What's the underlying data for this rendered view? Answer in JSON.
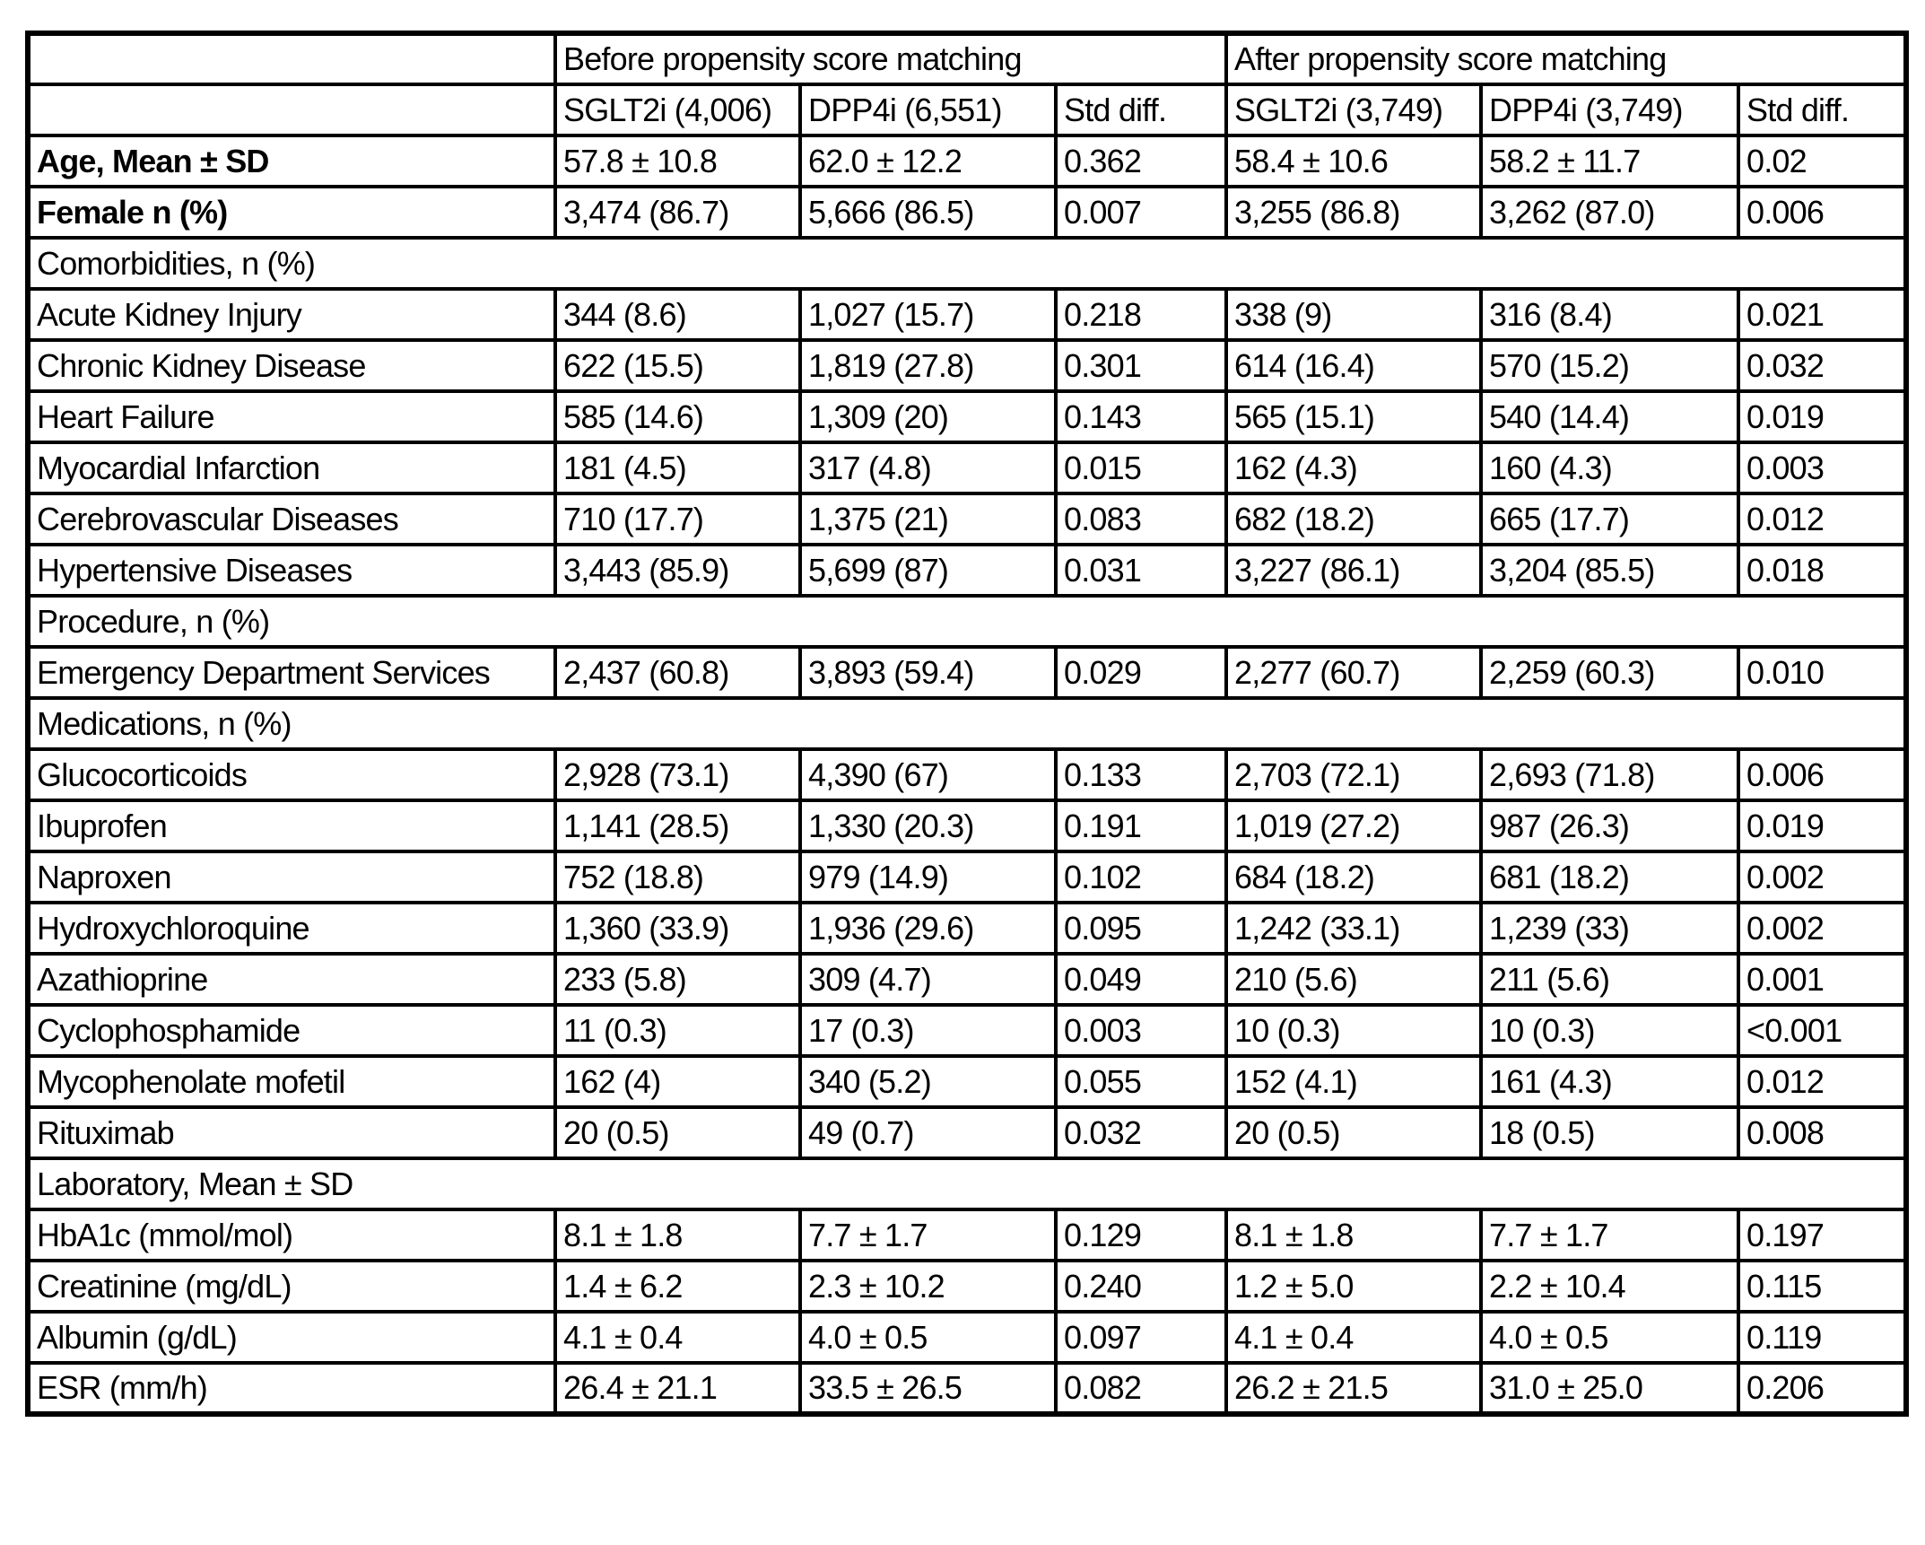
{
  "colors": {
    "border": "#000000",
    "background": "#ffffff",
    "text": "#000000"
  },
  "table": {
    "group_headers": {
      "before": "Before propensity score matching",
      "after": "After propensity score matching"
    },
    "column_headers": [
      "SGLT2i (4,006)",
      "DPP4i (6,551)",
      "Std diff.",
      "SGLT2i (3,749)",
      "DPP4i (3,749)",
      "Std diff."
    ],
    "rows": [
      {
        "type": "data",
        "bold": true,
        "label": "Age, Mean ± SD",
        "values": [
          "57.8 ± 10.8",
          "62.0 ± 12.2",
          "0.362",
          "58.4 ± 10.6",
          "58.2 ± 11.7",
          "0.02"
        ]
      },
      {
        "type": "data",
        "bold": true,
        "label": "Female n (%)",
        "values": [
          "3,474 (86.7)",
          "5,666 (86.5)",
          "0.007",
          "3,255 (86.8)",
          "3,262 (87.0)",
          "0.006"
        ]
      },
      {
        "type": "section",
        "label": "Comorbidities, n (%)"
      },
      {
        "type": "data",
        "bold": false,
        "label": "Acute Kidney Injury",
        "values": [
          "344 (8.6)",
          "1,027 (15.7)",
          "0.218",
          "338 (9)",
          "316 (8.4)",
          "0.021"
        ]
      },
      {
        "type": "data",
        "bold": false,
        "label": "Chronic Kidney Disease",
        "values": [
          "622 (15.5)",
          "1,819 (27.8)",
          "0.301",
          "614 (16.4)",
          "570 (15.2)",
          "0.032"
        ]
      },
      {
        "type": "data",
        "bold": false,
        "label": "Heart Failure",
        "values": [
          "585 (14.6)",
          "1,309 (20)",
          "0.143",
          "565 (15.1)",
          "540 (14.4)",
          "0.019"
        ]
      },
      {
        "type": "data",
        "bold": false,
        "label": "Myocardial Infarction",
        "values": [
          "181 (4.5)",
          "317 (4.8)",
          "0.015",
          "162 (4.3)",
          "160 (4.3)",
          "0.003"
        ]
      },
      {
        "type": "data",
        "bold": false,
        "label": "Cerebrovascular Diseases",
        "values": [
          "710 (17.7)",
          "1,375 (21)",
          "0.083",
          "682 (18.2)",
          "665 (17.7)",
          "0.012"
        ]
      },
      {
        "type": "data",
        "bold": false,
        "label": "Hypertensive Diseases",
        "values": [
          "3,443 (85.9)",
          "5,699 (87)",
          "0.031",
          "3,227 (86.1)",
          "3,204 (85.5)",
          "0.018"
        ]
      },
      {
        "type": "section",
        "label": "Procedure, n (%)"
      },
      {
        "type": "data",
        "bold": false,
        "label": "Emergency Department Services",
        "values": [
          "2,437 (60.8)",
          "3,893 (59.4)",
          "0.029",
          "2,277 (60.7)",
          "2,259 (60.3)",
          "0.010"
        ]
      },
      {
        "type": "section",
        "label": "Medications, n (%)"
      },
      {
        "type": "data",
        "bold": false,
        "label": "Glucocorticoids",
        "values": [
          "2,928 (73.1)",
          "4,390 (67)",
          "0.133",
          "2,703 (72.1)",
          "2,693 (71.8)",
          "0.006"
        ]
      },
      {
        "type": "data",
        "bold": false,
        "label": "Ibuprofen",
        "values": [
          "1,141 (28.5)",
          "1,330 (20.3)",
          "0.191",
          "1,019 (27.2)",
          "987 (26.3)",
          "0.019"
        ]
      },
      {
        "type": "data",
        "bold": false,
        "label": "Naproxen",
        "values": [
          "752 (18.8)",
          "979 (14.9)",
          "0.102",
          "684 (18.2)",
          "681 (18.2)",
          "0.002"
        ]
      },
      {
        "type": "data",
        "bold": false,
        "label": "Hydroxychloroquine",
        "values": [
          "1,360 (33.9)",
          "1,936 (29.6)",
          "0.095",
          "1,242 (33.1)",
          "1,239 (33)",
          "0.002"
        ]
      },
      {
        "type": "data",
        "bold": false,
        "label": "Azathioprine",
        "values": [
          "233 (5.8)",
          "309 (4.7)",
          "0.049",
          "210 (5.6)",
          "211 (5.6)",
          "0.001"
        ]
      },
      {
        "type": "data",
        "bold": false,
        "label": "Cyclophosphamide",
        "values": [
          "11 (0.3)",
          "17 (0.3)",
          "0.003",
          "10 (0.3)",
          "10 (0.3)",
          "<0.001"
        ]
      },
      {
        "type": "data",
        "bold": false,
        "label": "Mycophenolate mofetil",
        "values": [
          "162 (4)",
          "340 (5.2)",
          "0.055",
          "152 (4.1)",
          "161 (4.3)",
          "0.012"
        ]
      },
      {
        "type": "data",
        "bold": false,
        "label": "Rituximab",
        "values": [
          "20 (0.5)",
          "49 (0.7)",
          "0.032",
          "20 (0.5)",
          "18 (0.5)",
          "0.008"
        ]
      },
      {
        "type": "section",
        "label": "Laboratory, Mean ± SD"
      },
      {
        "type": "data",
        "bold": false,
        "label": "HbA1c (mmol/mol)",
        "values": [
          "8.1 ± 1.8",
          "7.7 ± 1.7",
          "0.129",
          "8.1 ± 1.8",
          "7.7 ± 1.7",
          "0.197"
        ]
      },
      {
        "type": "data",
        "bold": false,
        "label": "Creatinine (mg/dL)",
        "values": [
          "1.4 ± 6.2",
          "2.3 ± 10.2",
          "0.240",
          "1.2 ± 5.0",
          "2.2 ± 10.4",
          "0.115"
        ]
      },
      {
        "type": "data",
        "bold": false,
        "label": "Albumin (g/dL)",
        "values": [
          "4.1 ± 0.4",
          "4.0 ± 0.5",
          "0.097",
          "4.1 ± 0.4",
          "4.0 ± 0.5",
          "0.119"
        ]
      },
      {
        "type": "data",
        "bold": false,
        "label": "ESR (mm/h)",
        "values": [
          "26.4 ± 21.1",
          "33.5 ± 26.5",
          "0.082",
          "26.2 ± 21.5",
          "31.0 ± 25.0",
          "0.206"
        ]
      }
    ]
  }
}
